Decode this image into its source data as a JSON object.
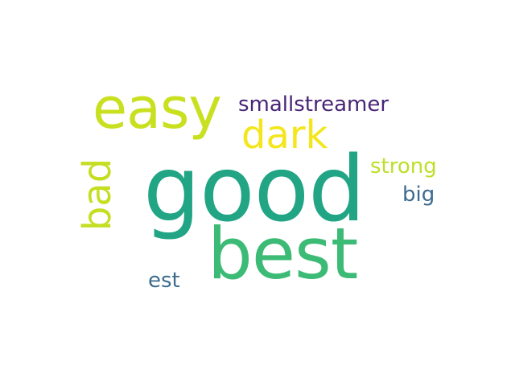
{
  "words": [
    {
      "text": "good",
      "color": "#21a585"
    },
    {
      "text": "best",
      "color": "#3bbb75"
    },
    {
      "text": "easy",
      "color": "#c8e020"
    },
    {
      "text": "dark",
      "color": "#f3e61d"
    },
    {
      "text": "smallstreamer",
      "color": "#482576"
    },
    {
      "text": "strong",
      "color": "#bddf26"
    },
    {
      "text": "big",
      "color": "#3f6a8f"
    },
    {
      "text": "est",
      "color": "#3d6b8e"
    },
    {
      "text": "bad",
      "color": "#c5de22"
    }
  ]
}
